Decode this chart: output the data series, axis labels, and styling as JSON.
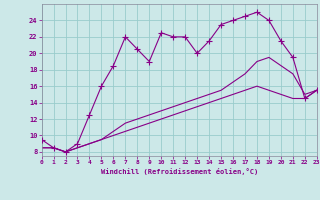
{
  "xlabel": "Windchill (Refroidissement éolien,°C)",
  "bg_color": "#cce8e8",
  "line_color": "#880088",
  "grid_color": "#99cccc",
  "series1_x": [
    0,
    1,
    2,
    3,
    4,
    5,
    6,
    7,
    8,
    9,
    10,
    11,
    12,
    13,
    14,
    15,
    16,
    17,
    18,
    19,
    20,
    21,
    22,
    23
  ],
  "series1_y": [
    9.5,
    8.5,
    8.0,
    9.0,
    12.5,
    16.0,
    18.5,
    22.0,
    20.5,
    19.0,
    22.5,
    22.0,
    22.0,
    20.0,
    21.5,
    23.5,
    24.0,
    24.5,
    25.0,
    24.0,
    21.5,
    19.5,
    14.5,
    15.5
  ],
  "series2_x": [
    0,
    1,
    2,
    3,
    4,
    5,
    6,
    7,
    8,
    9,
    10,
    11,
    12,
    13,
    14,
    15,
    16,
    17,
    18,
    19,
    20,
    21,
    22,
    23
  ],
  "series2_y": [
    8.5,
    8.5,
    8.0,
    8.5,
    9.0,
    9.5,
    10.5,
    11.5,
    12.0,
    12.5,
    13.0,
    13.5,
    14.0,
    14.5,
    15.0,
    15.5,
    16.5,
    17.5,
    19.0,
    19.5,
    18.5,
    17.5,
    15.0,
    15.5
  ],
  "series3_x": [
    0,
    1,
    2,
    3,
    4,
    5,
    6,
    7,
    8,
    9,
    10,
    11,
    12,
    13,
    14,
    15,
    16,
    17,
    18,
    19,
    20,
    21,
    22,
    23
  ],
  "series3_y": [
    8.5,
    8.5,
    8.0,
    8.5,
    9.0,
    9.5,
    10.0,
    10.5,
    11.0,
    11.5,
    12.0,
    12.5,
    13.0,
    13.5,
    14.0,
    14.5,
    15.0,
    15.5,
    16.0,
    15.5,
    15.0,
    14.5,
    14.5,
    15.5
  ],
  "xlim": [
    0,
    23
  ],
  "ylim": [
    7.5,
    26
  ],
  "yticks": [
    8,
    10,
    12,
    14,
    16,
    18,
    20,
    22,
    24
  ],
  "xticks": [
    0,
    1,
    2,
    3,
    4,
    5,
    6,
    7,
    8,
    9,
    10,
    11,
    12,
    13,
    14,
    15,
    16,
    17,
    18,
    19,
    20,
    21,
    22,
    23
  ]
}
